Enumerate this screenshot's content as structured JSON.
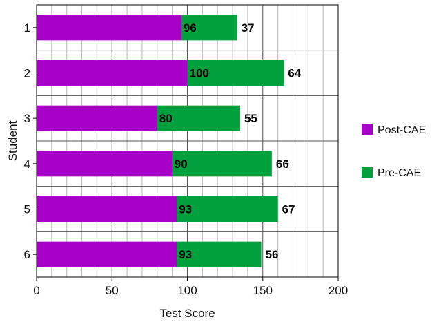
{
  "chart_data": {
    "type": "bar",
    "orientation": "horizontal",
    "stacked": true,
    "categories": [
      "1",
      "2",
      "3",
      "4",
      "5",
      "6"
    ],
    "series": [
      {
        "name": "Post-CAE",
        "values": [
          96,
          100,
          80,
          90,
          93,
          93
        ],
        "color": "#a800c8"
      },
      {
        "name": "Pre-CAE",
        "values": [
          37,
          64,
          55,
          66,
          67,
          56
        ],
        "color": "#00a03c"
      }
    ],
    "xlabel": "Test Score",
    "ylabel": "Student",
    "xlim": [
      0,
      200
    ],
    "xticks": [
      "0",
      "50",
      "100",
      "150",
      "200"
    ],
    "grid": true,
    "legend_position": "right"
  }
}
